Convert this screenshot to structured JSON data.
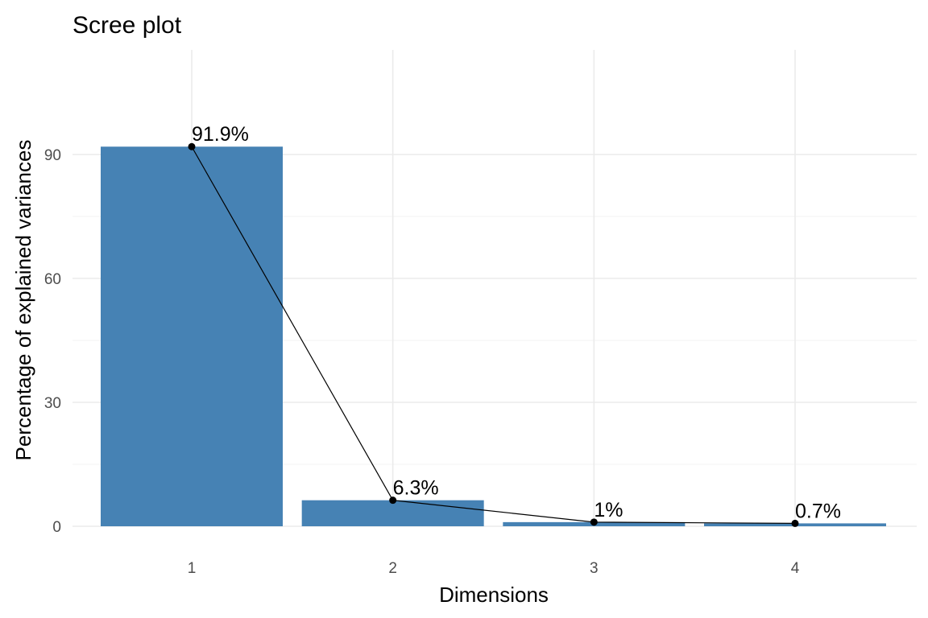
{
  "chart_data": {
    "type": "bar",
    "title": "Scree plot",
    "xlabel": "Dimensions",
    "ylabel": "Percentage of explained variances",
    "categories": [
      "1",
      "2",
      "3",
      "4"
    ],
    "values": [
      91.9,
      6.3,
      1.0,
      0.7
    ],
    "data_labels": [
      "91.9%",
      "6.3%",
      "1%",
      "0.7%"
    ],
    "yticks": [
      0,
      30,
      60,
      90
    ],
    "ylim": [
      0,
      96.5
    ],
    "overlay_line": true,
    "grid": true,
    "bar_color": "#4682B4",
    "line_color": "#000000"
  }
}
